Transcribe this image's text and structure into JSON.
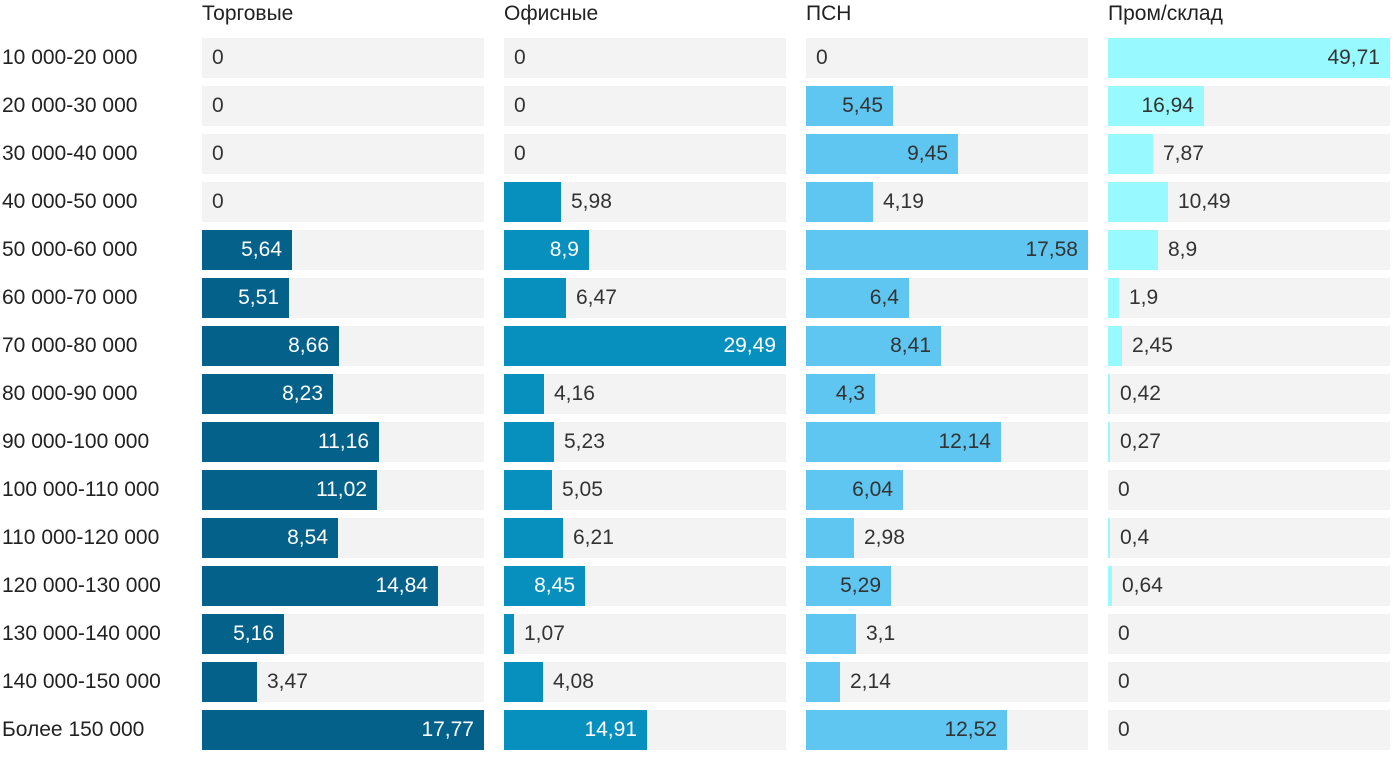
{
  "chart_data": {
    "type": "bar",
    "orientation": "horizontal",
    "categories": [
      "10 000-20 000",
      "20 000-30 000",
      "30 000-40 000",
      "40 000-50 000",
      "50 000-60 000",
      "60 000-70 000",
      "70 000-80 000",
      "80 000-90 000",
      "90 000-100 000",
      "100 000-110 000",
      "110 000-120 000",
      "120 000-130 000",
      "130 000-140 000",
      "140 000-150 000",
      "Более 150 000"
    ],
    "series": [
      {
        "name": "Торговые",
        "color": "#03618a",
        "max": 17.77,
        "values": [
          0,
          0,
          0,
          0,
          5.64,
          5.51,
          8.66,
          8.23,
          11.16,
          11.02,
          8.54,
          14.84,
          5.16,
          3.47,
          17.77
        ],
        "labels": [
          "0",
          "0",
          "0",
          "0",
          "5,64",
          "5,51",
          "8,66",
          "8,23",
          "11,16",
          "11,02",
          "8,54",
          "14,84",
          "5,16",
          "3,47",
          "17,77"
        ]
      },
      {
        "name": "Офисные",
        "color": "#0790be",
        "max": 29.49,
        "values": [
          0,
          0,
          0,
          5.98,
          8.9,
          6.47,
          29.49,
          4.16,
          5.23,
          5.05,
          6.21,
          8.45,
          1.07,
          4.08,
          14.91
        ],
        "labels": [
          "0",
          "0",
          "0",
          "5,98",
          "8,9",
          "6,47",
          "29,49",
          "4,16",
          "5,23",
          "5,05",
          "6,21",
          "8,45",
          "1,07",
          "4,08",
          "14,91"
        ]
      },
      {
        "name": "ПСН",
        "color": "#5ec6f0",
        "max": 17.58,
        "values": [
          0,
          5.45,
          9.45,
          4.19,
          17.58,
          6.4,
          8.41,
          4.3,
          12.14,
          6.04,
          2.98,
          5.29,
          3.1,
          2.14,
          12.52
        ],
        "labels": [
          "0",
          "5,45",
          "9,45",
          "4,19",
          "17,58",
          "6,4",
          "8,41",
          "4,3",
          "12,14",
          "6,04",
          "2,98",
          "5,29",
          "3,1",
          "2,14",
          "12,52"
        ]
      },
      {
        "name": "Пром/склад",
        "color": "#98fafe",
        "max": 49.71,
        "values": [
          49.71,
          16.94,
          7.87,
          10.49,
          8.9,
          1.9,
          2.45,
          0.42,
          0.27,
          0,
          0.4,
          0.64,
          0,
          0,
          0
        ],
        "labels": [
          "49,71",
          "16,94",
          "7,87",
          "10,49",
          "8,9",
          "1,9",
          "2,45",
          "0,42",
          "0,27",
          "0",
          "0,4",
          "0,64",
          "0",
          "0",
          "0"
        ]
      }
    ],
    "inside_label_color": {
      "Торговые": "#ffffff",
      "Офисные": "#ffffff",
      "ПСН": "#333333",
      "Пром/склад": "#333333"
    }
  }
}
